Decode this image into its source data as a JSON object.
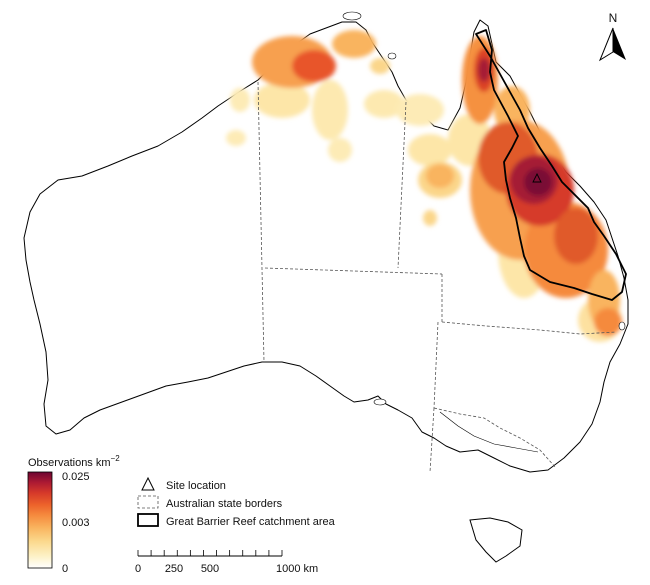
{
  "north_arrow": {
    "label": "N"
  },
  "colorbar": {
    "title": "Observations km",
    "title_exponent": "−2",
    "max_label": "0.025",
    "mid_label": "0.003",
    "min_label": "0",
    "colors": [
      "#ffffff",
      "#fdf0c4",
      "#fbd68a",
      "#f9b35e",
      "#f58a3e",
      "#ee6a2b",
      "#dc4326",
      "#b81d2e",
      "#8e0b3a",
      "#6d0532"
    ]
  },
  "legend": {
    "site": "Site location",
    "state_borders": "Australian state borders",
    "catchment": "Great Barrier Reef catchment area"
  },
  "scale_bar": {
    "tick_labels": [
      "0",
      "250",
      "500",
      "1000 km"
    ],
    "minor_tick_count": 11
  }
}
